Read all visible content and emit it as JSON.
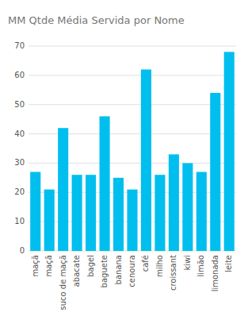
{
  "chart_data": {
    "type": "bar",
    "title": "MM Qtde Média Servida por Nome",
    "categories": [
      "maçã",
      "maçã",
      "suco de maçã",
      "abacate",
      "bagel",
      "baguete",
      "banana",
      "cenoura",
      "café",
      "milho",
      "croissant",
      "kiwi",
      "limão",
      "limonada",
      "leite"
    ],
    "values": [
      27,
      21,
      42,
      26,
      26,
      46,
      25,
      21,
      62,
      26,
      33,
      30,
      27,
      54,
      68
    ],
    "color": "#00BFEF",
    "ylim": [
      0,
      70
    ],
    "yticks": [
      0,
      10,
      20,
      30,
      40,
      50,
      60,
      70
    ],
    "grid": true
  }
}
